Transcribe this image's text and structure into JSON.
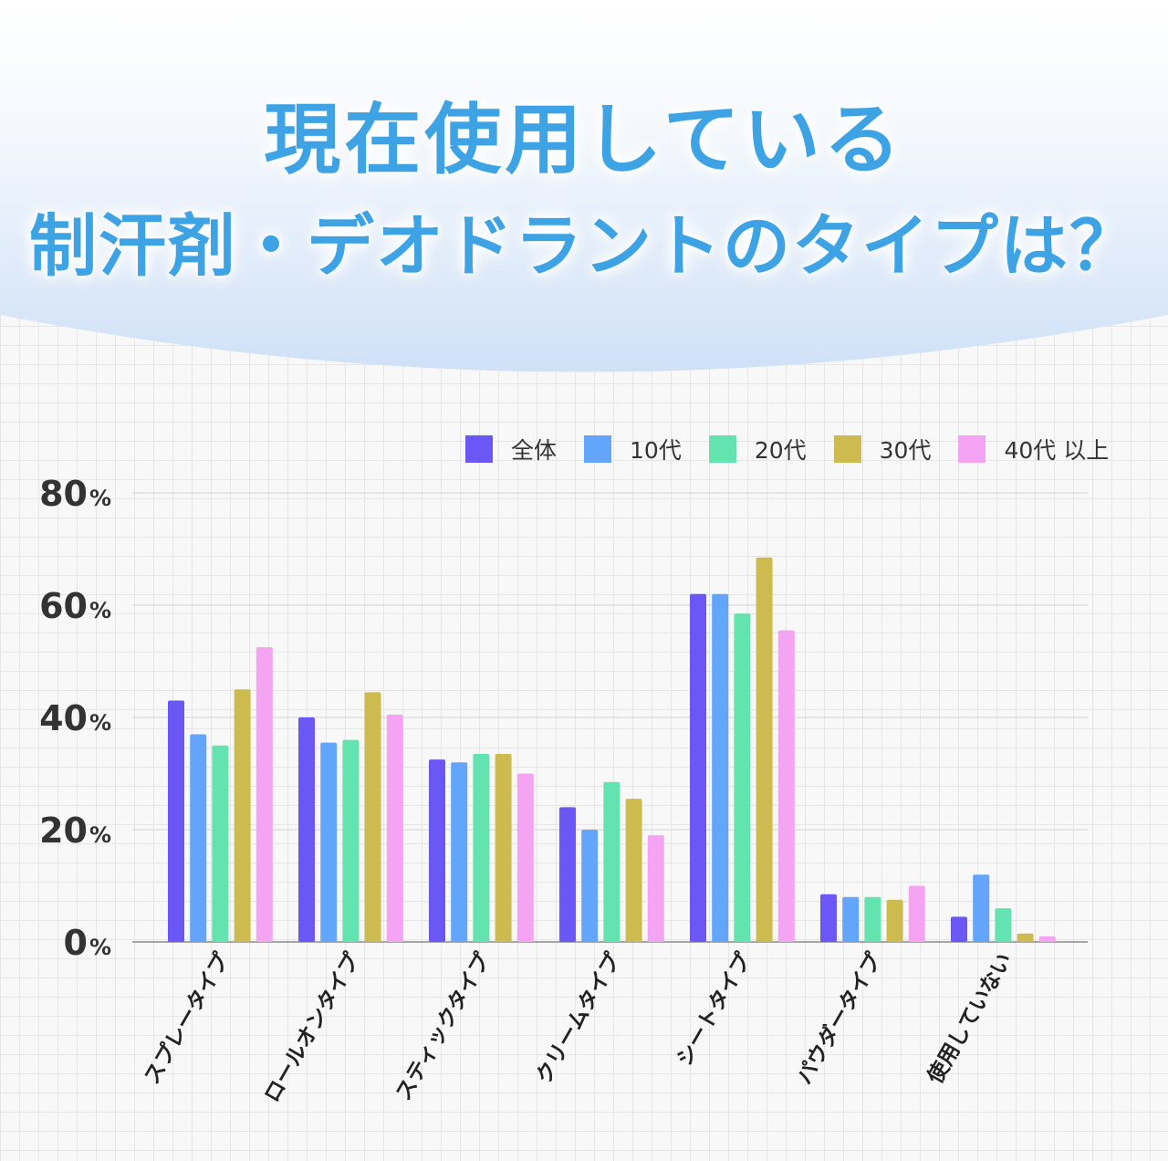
{
  "title": {
    "line1": "現在使用している",
    "line2": "制汗剤・デオドラントのタイプは？"
  },
  "colors": {
    "title": "#3ea3e4",
    "header_gradient_top": "#ffffff",
    "header_gradient_bottom": "#d2e4f8"
  },
  "chart_data": {
    "type": "bar",
    "categories": [
      "スプレータイプ",
      "ロールオンタイプ",
      "スティックタイプ",
      "クリームタイプ",
      "シートタイプ",
      "パウダータイプ",
      "使用していない"
    ],
    "series": [
      {
        "name": "全体",
        "color": "#6b57f5",
        "values": [
          43,
          40,
          32.5,
          24,
          62,
          8.5,
          4.5
        ]
      },
      {
        "name": "10代",
        "color": "#63a5fa",
        "values": [
          37,
          35.5,
          32,
          20,
          62,
          8,
          12
        ]
      },
      {
        "name": "20代",
        "color": "#63e3b0",
        "values": [
          35,
          36,
          33.5,
          28.5,
          58.5,
          8,
          6
        ]
      },
      {
        "name": "30代",
        "color": "#cdbb50",
        "values": [
          45,
          44.5,
          33.5,
          25.5,
          68.5,
          7.5,
          1.5
        ]
      },
      {
        "name": "40代 以上",
        "color": "#f5a4f3",
        "values": [
          52.5,
          40.5,
          30,
          19,
          55.5,
          10,
          1
        ]
      }
    ],
    "yticks": [
      "0",
      "20",
      "40",
      "60",
      "80"
    ],
    "ytick_unit": "%",
    "ylim": [
      0,
      80
    ],
    "grid": true,
    "legend_position": "top-right",
    "xlabel": "",
    "ylabel": ""
  }
}
